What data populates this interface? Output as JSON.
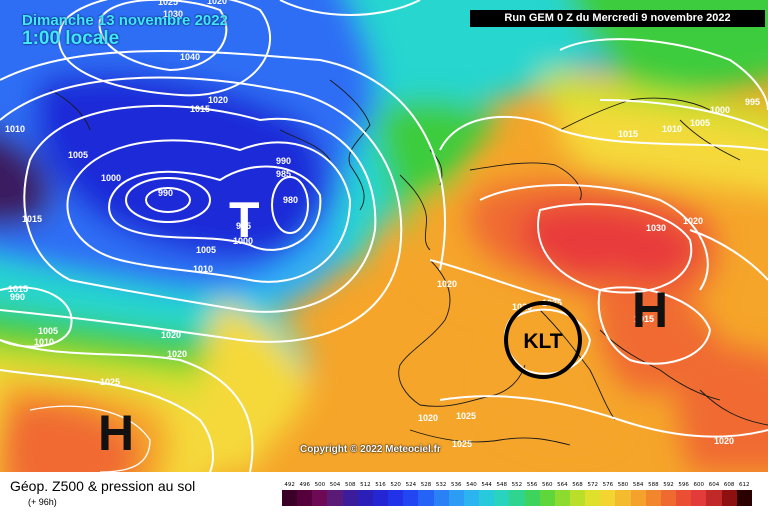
{
  "header": {
    "date": "Dimanche 13 novembre 2022",
    "time": "1:00 locale",
    "run": "Run GEM 0 Z du Mercredi 9 novembre 2022"
  },
  "copyright": "Copyright © 2022 Meteociel.fr",
  "footer": {
    "title": "Géop. Z500 & pression au sol",
    "subtitle": "(+ 96h)"
  },
  "map": {
    "high_symbol": "H",
    "low_symbol": "T",
    "klt_label": "KLT",
    "pressure_labels": [
      "1025",
      "1030",
      "1020",
      "1040",
      "1020",
      "1015",
      "1010",
      "1005",
      "1000",
      "990",
      "990",
      "985",
      "980",
      "995",
      "1000",
      "1005",
      "1010",
      "1015",
      "1015",
      "990",
      "1010",
      "1005",
      "1020",
      "1020",
      "1025",
      "1020",
      "1020",
      "1025",
      "1025",
      "1020",
      "1020",
      "1015",
      "1010",
      "1005",
      "1000",
      "995",
      "1030",
      "1025",
      "1015",
      "1020"
    ],
    "colors": {
      "deep_blue": "#1b2bd8",
      "blue": "#2f6ef5",
      "light_blue": "#2fb2f5",
      "cyan": "#25d6cf",
      "green": "#3ecc3e",
      "yellow_green": "#c7e02a",
      "yellow": "#f5d93a",
      "orange": "#f5a52a",
      "red_orange": "#f06a30",
      "red": "#e83a3a"
    }
  },
  "legend": {
    "values": [
      "492",
      "496",
      "500",
      "504",
      "508",
      "512",
      "516",
      "520",
      "524",
      "528",
      "532",
      "536",
      "540",
      "544",
      "548",
      "552",
      "556",
      "560",
      "564",
      "568",
      "572",
      "576",
      "580",
      "584",
      "588",
      "592",
      "596",
      "600",
      "604",
      "608",
      "612"
    ],
    "colors": [
      "#3a0028",
      "#55003d",
      "#6e0a55",
      "#5a1a75",
      "#3b1c9a",
      "#2c1fb8",
      "#2426d3",
      "#2232e8",
      "#2246f2",
      "#2463f5",
      "#2a80f5",
      "#2c9cf5",
      "#2cb4f0",
      "#29c9dc",
      "#28d4bd",
      "#2fd58e",
      "#3ed35c",
      "#5fd63a",
      "#8ddb2f",
      "#b9df2b",
      "#dfe02b",
      "#f2d530",
      "#f5bb2e",
      "#f5a22c",
      "#f2862d",
      "#ee6a30",
      "#ea4f33",
      "#e33a3a",
      "#c12828",
      "#8e1010",
      "#2a0000"
    ]
  }
}
